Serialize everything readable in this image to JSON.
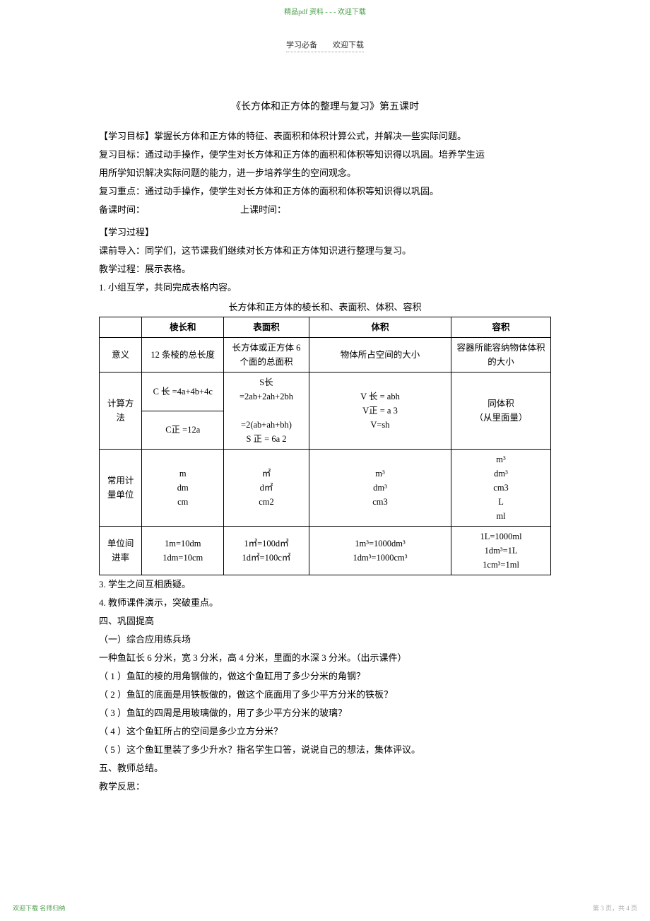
{
  "watermark": {
    "top": "精品pdf 资料 - - -  欢迎下载",
    "subheader_left": "学习必备",
    "subheader_right": "欢迎下载"
  },
  "title": "《长方体和正方体的整理与复习》第五课时",
  "paragraphs": {
    "p1": "【学习目标】掌握长方体和正方体的特征、表面积和体积计算公式，并解决一些实际问题。",
    "p2": "复习目标：通过动手操作，使学生对长方体和正方体的面积和体积等知识得以巩固。培养学生运",
    "p3": "用所学知识解决实际问题的能力，进一步培养学生的空间观念。",
    "p4": "复习重点：通过动手操作，使学生对长方体和正方体的面积和体积等知识得以巩固。",
    "time_prep": "备课时间：",
    "time_class": "上课时间：",
    "p5": "【学习过程】",
    "p6": "课前导入：同学们，这节课我们继续对长方体和正方体知识进行整理与复习。",
    "p7": "教学过程：展示表格。",
    "p8": "1. 小组互学，共同完成表格内容。"
  },
  "table_caption": "长方体和正方体的棱长和、表面积、体积、容积",
  "table": {
    "headers": {
      "h0": "",
      "h1": "棱长和",
      "h2": "表面积",
      "h3": "体积",
      "h4": "容积"
    },
    "rows": {
      "r1": {
        "label": "意义",
        "c1": "12 条棱的总长度",
        "c2": "长方体或正方体  6 个面的总面积",
        "c3": "物体所占空间的大小",
        "c4": "容器所能容纳物体体积的大小"
      },
      "r2": {
        "label": "计算方法",
        "c1a": "C 长 =4a+4b+4c",
        "c1b": "C正 =12a",
        "c2a": "S长\n=2ab+2ah+2bh",
        "c2b": "=2(ab+ah+bh)\nS 正 = 6a 2",
        "c3a": "V 长 = abh\nV正 = a 3\nV=sh",
        "c4a": "同体积\n（从里面量）"
      },
      "r3": {
        "label": "常用计量单位",
        "c1": "m\ndm\ncm",
        "c2": "㎡\nd㎡\ncm2",
        "c3": "m³\ndm³\ncm3",
        "c4": "m³\ndm³\ncm3\nL\nml"
      },
      "r4": {
        "label": "单位间进率",
        "c1": "1m=10dm\n1dm=10cm",
        "c2": "1㎡=100d㎡\n1d㎡=100c㎡",
        "c3": "1m³=1000dm³\n1dm³=1000cm³",
        "c4": "1L=1000ml\n1dm³=1L\n1cm³=1ml"
      }
    }
  },
  "post_table": {
    "p1": "3. 学生之间互相质疑。",
    "p2": "4. 教师课件演示，突破重点。",
    "p3": "四、巩固提高",
    "p4": "（一）综合应用练兵场",
    "p5": "一种鱼缸长   6 分米，宽   3 分米，高   4 分米，里面的水深   3 分米。（出示课件）",
    "p6": "（ 1 ）鱼缸的棱的用角钢做的，做这个鱼缸用了多少分米的角钢？",
    "p7": "（ 2 ）鱼缸的底面是用铁板做的，做这个底面用了多少平方分米的铁板？",
    "p8": "（ 3 ）鱼缸的四周是用玻璃做的，用了多少平方分米的玻璃？",
    "p9": "（ 4 ）这个鱼缸所占的空间是多少立方分米？",
    "p10": "（ 5 ）这个鱼缸里装了多少升水？指名学生口答，说说自己的想法，集体评议。",
    "p11": "五、教师总结。",
    "p12": "教学反思："
  },
  "footer": {
    "left": "欢迎下载  名师归纳",
    "right": "第 3 页，共 4 页"
  }
}
